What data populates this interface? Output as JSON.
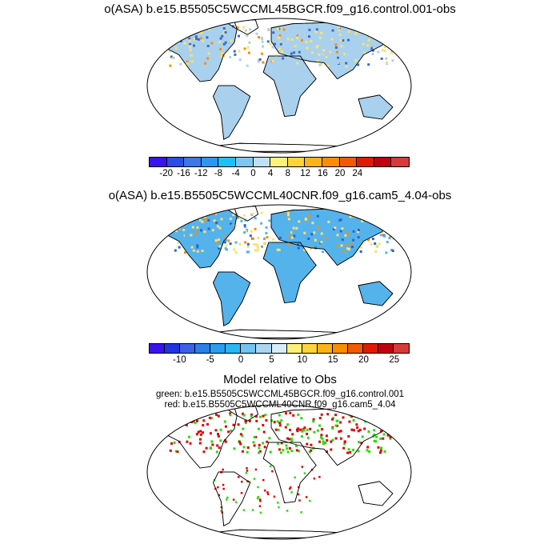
{
  "chart_data": [
    {
      "type": "heatmap",
      "title": "o(ASA) b.e15.B5505C5WCCML45BGCR.f09_g16.control.001-obs",
      "colorbar": {
        "colors": [
          "#3a12ee",
          "#2a4de6",
          "#3b78e8",
          "#2f96f0",
          "#1cc1f7",
          "#7fc6ee",
          "#bfe0f4",
          "#fff07a",
          "#fdd43a",
          "#fcb318",
          "#fc8c00",
          "#f25a00",
          "#e01a00",
          "#c00010",
          "#d63b3b"
        ],
        "tick_labels": [
          "-20",
          "-16",
          "-12",
          "-8",
          "-4",
          "0",
          "4",
          "8",
          "12",
          "16",
          "20",
          "24"
        ]
      }
    },
    {
      "type": "heatmap",
      "title": "o(ASA) b.e15.B5505C5WCCML40CNR.f09_g16.cam5_4.04-obs",
      "colorbar": {
        "colors": [
          "#3a12ee",
          "#2233e0",
          "#3a62e6",
          "#2a7fe8",
          "#2b9cee",
          "#2ab6f2",
          "#72c4ee",
          "#aad6f2",
          "#d8ecf8",
          "#fff07a",
          "#fdd43a",
          "#fcb318",
          "#fc8c00",
          "#f25a00",
          "#e01a00",
          "#c00010",
          "#d63b3b"
        ],
        "tick_labels": [
          "-10",
          "-5",
          "0",
          "5",
          "10",
          "15",
          "20",
          "25"
        ]
      }
    },
    {
      "type": "heatmap",
      "title": "Model relative to Obs",
      "legend": [
        {
          "label": "green: b.e15.B5505C5WCCML45BGCR.f09_g16.control.001",
          "color": "#22e000"
        },
        {
          "label": "red: b.e15.B5505C5WCCML40CNR.f09_g16.cam5_4.04",
          "color": "#e00000"
        }
      ]
    }
  ]
}
